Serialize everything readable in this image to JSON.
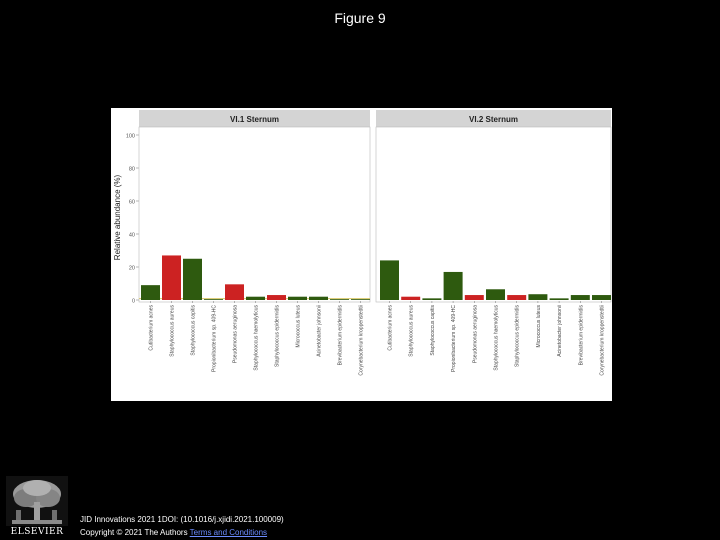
{
  "slide": {
    "title": "Figure 9"
  },
  "caption": {
    "line1": "JID Innovations 2021 1DOI: (10.1016/j.xjidi.2021.100009)",
    "line2_prefix": "Copyright © 2021 The Authors",
    "line2_link": "Terms and Conditions"
  },
  "logo": {
    "wordmark": "ELSEVIER"
  },
  "chart_data": {
    "type": "bar",
    "ylabel": "Relative abundance (%)",
    "ylim": [
      0,
      100
    ],
    "yticks": [
      0,
      20,
      40,
      60,
      80,
      100
    ],
    "ytick_labels": [
      "0",
      "20",
      "40",
      "60",
      "80",
      "100"
    ],
    "grid": false,
    "colors": {
      "green": "#2e5a0f",
      "red": "#cc2222",
      "baseline": "#d9c768"
    },
    "panels": [
      {
        "title": "VI.1 Sternum",
        "categories": [
          "Cutibacterium acnes",
          "Staphylococcus aureus",
          "Staphylococcus capitis",
          "Propionibacterium sp. 409-HC",
          "Pseudomonas aeruginosa",
          "Staphylococcus haemolyticus",
          "Staphylococcus epidermidis",
          "Micrococcus luteus",
          "Acinetobacter johnsonii",
          "Brevibacterium epidermidis",
          "Corynebacterium kroppenstedtii"
        ],
        "values": [
          9,
          27,
          25,
          0.3,
          9.5,
          2,
          3,
          2,
          2,
          0.2,
          0.2
        ],
        "bar_colors": [
          "green",
          "red",
          "green",
          "green",
          "red",
          "green",
          "red",
          "green",
          "green",
          "green",
          "green"
        ],
        "baseline_value": 0.8
      },
      {
        "title": "VI.2 Sternum",
        "categories": [
          "Cutibacterium acnes",
          "Staphylococcus aureus",
          "Staphylococcus capitis",
          "Propionibacterium sp. 409-HC",
          "Pseudomonas aeruginosa",
          "Staphylococcus haemolyticus",
          "Staphylococcus epidermidis",
          "Micrococcus luteus",
          "Acinetobacter johnsonii",
          "Brevibacterium epidermidis",
          "Corynebacterium kroppenstedtii"
        ],
        "values": [
          24,
          2,
          1,
          17,
          3,
          6.5,
          3,
          3.5,
          1,
          3,
          3
        ],
        "bar_colors": [
          "green",
          "red",
          "green",
          "green",
          "red",
          "green",
          "red",
          "green",
          "green",
          "green",
          "green"
        ],
        "baseline_value": null
      }
    ]
  }
}
